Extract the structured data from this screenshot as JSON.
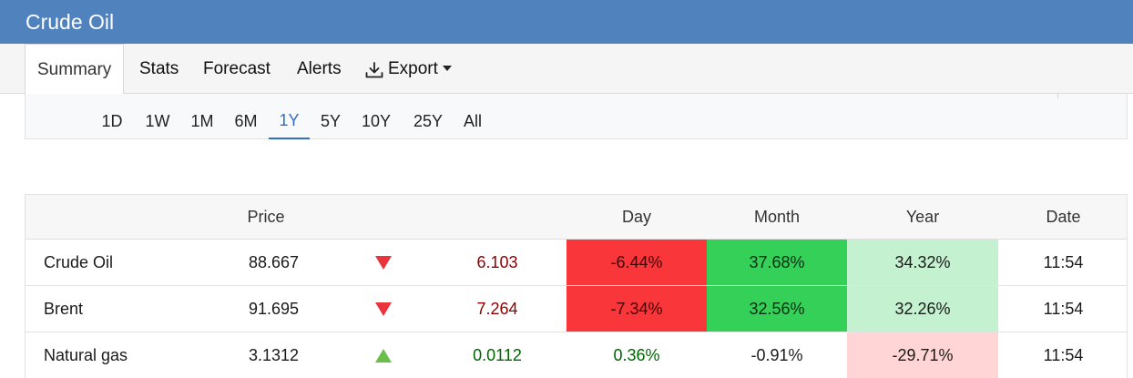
{
  "header": {
    "title": "Crude Oil"
  },
  "tabs": [
    {
      "label": "Summary",
      "active": true
    },
    {
      "label": "Stats"
    },
    {
      "label": "Forecast"
    },
    {
      "label": "Alerts"
    },
    {
      "label": "Export",
      "icon": "download-icon",
      "dropdown": true
    }
  ],
  "ranges": {
    "options": [
      "1D",
      "1W",
      "1M",
      "6M",
      "1Y",
      "5Y",
      "10Y",
      "25Y",
      "All"
    ],
    "selected": "1Y"
  },
  "table": {
    "headers": {
      "name": "",
      "price": "Price",
      "direction": "",
      "change": "",
      "day": "Day",
      "month": "Month",
      "year": "Year",
      "date": "Date"
    },
    "rows": [
      {
        "name": "Crude Oil",
        "price": "88.667",
        "direction": "down",
        "change": "6.103",
        "day": "-6.44%",
        "month": "37.68%",
        "year": "34.32%",
        "date": "11:54"
      },
      {
        "name": "Brent",
        "price": "91.695",
        "direction": "down",
        "change": "7.264",
        "day": "-7.34%",
        "month": "32.56%",
        "year": "32.26%",
        "date": "11:54"
      },
      {
        "name": "Natural gas",
        "price": "3.1312",
        "direction": "up",
        "change": "0.0112",
        "day": "0.36%",
        "month": "-0.91%",
        "year": "-29.71%",
        "date": "11:54"
      }
    ]
  },
  "colors": {
    "header_bg": "#5083bd",
    "accent": "#2f6fc4",
    "strong_negative": "#f9363a",
    "strong_positive": "#34d058",
    "light_positive": "#c4f1d0",
    "light_negative": "#ffd5d5",
    "negative_text": "#8b0000",
    "positive_text": "#006400",
    "arrow_down": "#e8343a",
    "arrow_up": "#6abf4b"
  }
}
